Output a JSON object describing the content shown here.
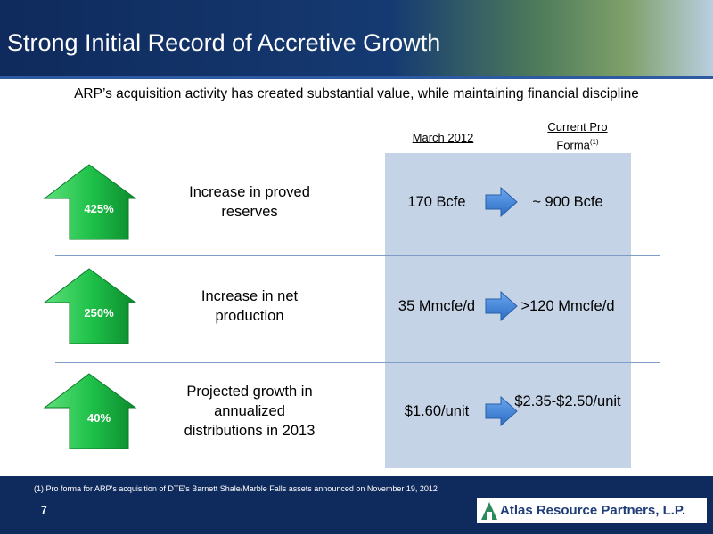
{
  "header": {
    "title": "Strong Initial Record of Accretive Growth"
  },
  "subtitle": "ARP’s acquisition activity has created substantial value, while maintaining financial discipline",
  "columns": {
    "march": "March 2012",
    "current": "Current Pro Forma",
    "current_note": "(1)"
  },
  "rows": [
    {
      "change": "425%",
      "label": "Increase in proved reserves",
      "march": "170 Bcfe",
      "current": "~ 900 Bcfe"
    },
    {
      "change": "250%",
      "label": "Increase in net production",
      "march": "35 Mmcfe/d",
      "current": ">120 Mmcfe/d"
    },
    {
      "change": "40%",
      "label": "Projected growth in annualized distributions in 2013",
      "march": "$1.60/unit",
      "current": "$2.35-$2.50/unit"
    }
  ],
  "footer": {
    "footnote": "(1) Pro forma for ARP’s acquisition of DTE’s Barnett Shale/Marble Falls assets announced on November 19, 2012",
    "page": "7",
    "logo": "Atlas Resource Partners, L.P."
  }
}
